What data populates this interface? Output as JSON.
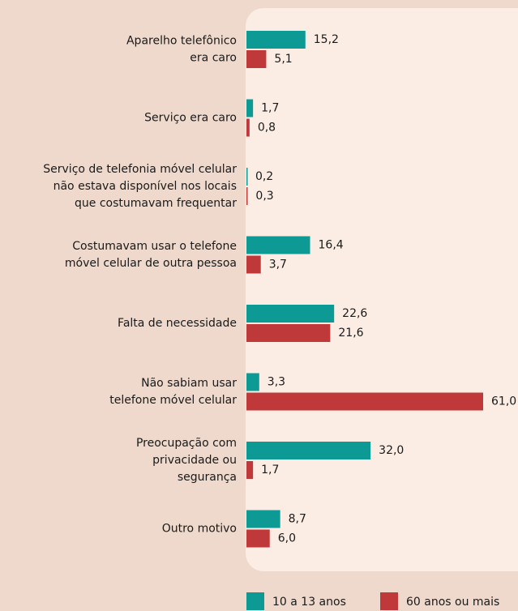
{
  "chart_data": {
    "type": "bar",
    "orientation": "horizontal",
    "categories": [
      [
        "Aparelho telefônico",
        "era caro"
      ],
      [
        "Serviço era caro"
      ],
      [
        "Serviço de telefonia móvel celular",
        "não estava disponível nos locais",
        "que costumavam frequentar"
      ],
      [
        "Costumavam usar o telefone",
        "móvel celular de outra pessoa"
      ],
      [
        "Falta de necessidade"
      ],
      [
        "Não sabiam usar",
        "telefone móvel celular"
      ],
      [
        "Preocupação com",
        "privacidade ou",
        "segurança"
      ],
      [
        "Outro motivo"
      ]
    ],
    "series": [
      {
        "name": "10 a 13 anos",
        "color": "#0e9a94",
        "values": [
          15.2,
          1.7,
          0.2,
          16.4,
          22.6,
          3.3,
          32.0,
          8.7
        ],
        "value_labels": [
          "15,2",
          "1,7",
          "0,2",
          "16,4",
          "22,6",
          "3,3",
          "32,0",
          "8,7"
        ]
      },
      {
        "name": "60 anos ou mais",
        "color": "#c0393a",
        "values": [
          5.1,
          0.8,
          0.3,
          3.7,
          21.6,
          61.0,
          1.7,
          6.0
        ],
        "value_labels": [
          "5,1",
          "0,8",
          "0,3",
          "3,7",
          "21,6",
          "61,0",
          "1,7",
          "6,0"
        ]
      }
    ]
  }
}
